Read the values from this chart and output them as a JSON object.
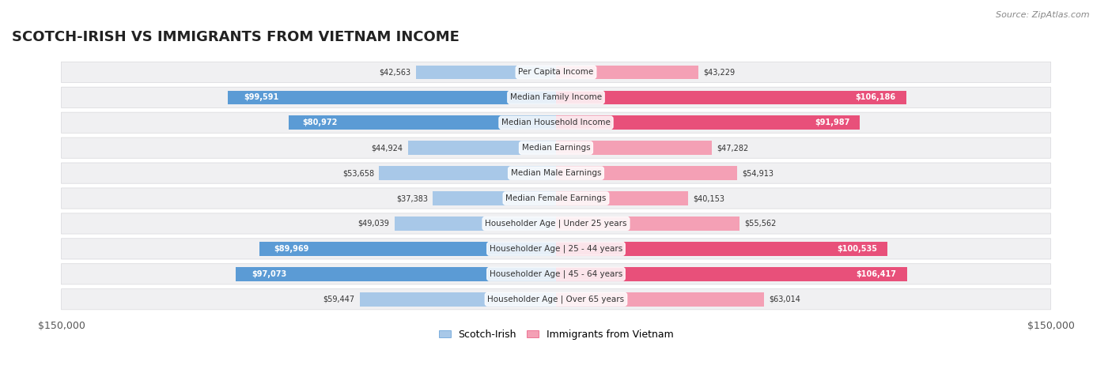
{
  "title": "SCOTCH-IRISH VS IMMIGRANTS FROM VIETNAM INCOME",
  "source": "Source: ZipAtlas.com",
  "categories": [
    "Per Capita Income",
    "Median Family Income",
    "Median Household Income",
    "Median Earnings",
    "Median Male Earnings",
    "Median Female Earnings",
    "Householder Age | Under 25 years",
    "Householder Age | 25 - 44 years",
    "Householder Age | 45 - 64 years",
    "Householder Age | Over 65 years"
  ],
  "scotch_irish": [
    42563,
    99591,
    80972,
    44924,
    53658,
    37383,
    49039,
    89969,
    97073,
    59447
  ],
  "vietnam": [
    43229,
    106186,
    91987,
    47282,
    54913,
    40153,
    55562,
    100535,
    106417,
    63014
  ],
  "scotch_irish_labels": [
    "$42,563",
    "$99,591",
    "$80,972",
    "$44,924",
    "$53,658",
    "$37,383",
    "$49,039",
    "$89,969",
    "$97,073",
    "$59,447"
  ],
  "vietnam_labels": [
    "$43,229",
    "$106,186",
    "$91,987",
    "$47,282",
    "$54,913",
    "$40,153",
    "$55,562",
    "$100,535",
    "$106,417",
    "$63,014"
  ],
  "max_val": 150000,
  "scotch_irish_color_light": "#a8c8e8",
  "scotch_irish_color_dark": "#5b9bd5",
  "vietnam_color_light": "#f4a0b5",
  "vietnam_color_dark": "#e8507a",
  "background_color": "#ffffff",
  "row_bg_color": "#f0f0f0",
  "legend_scotch_irish": "Scotch-Irish",
  "legend_vietnam": "Immigrants from Vietnam"
}
